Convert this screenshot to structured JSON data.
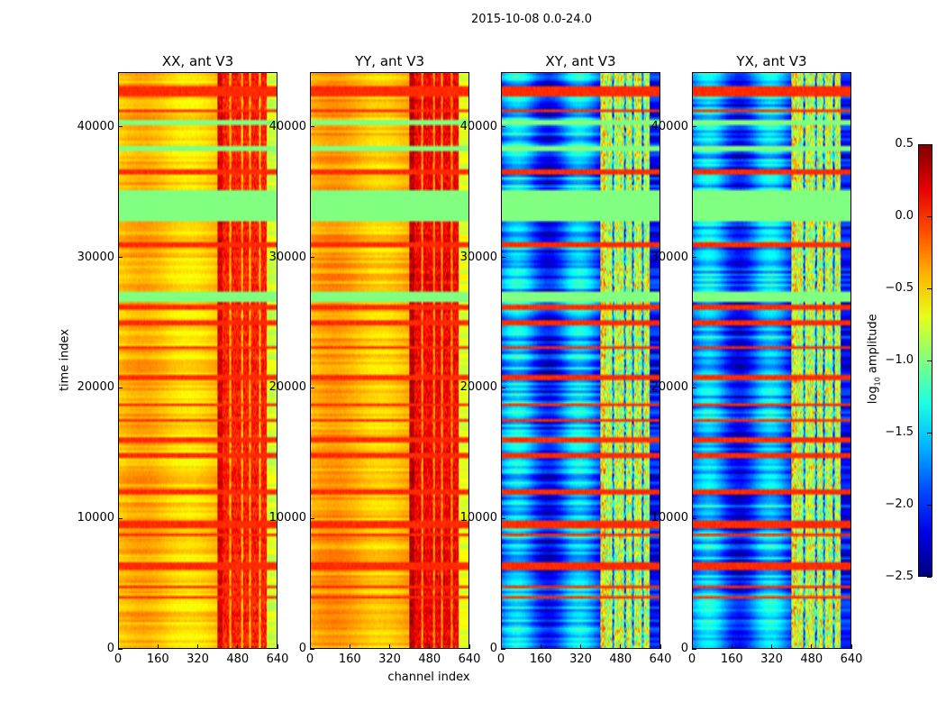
{
  "chart_data": {
    "type": "heatmap",
    "title": "2015-10-08 0.0-24.0",
    "xlabel": "channel index",
    "ylabel": "time index",
    "xlim": [
      0,
      640
    ],
    "ylim": [
      0,
      44200
    ],
    "xticks": [
      0,
      160,
      320,
      480,
      640
    ],
    "yticks": [
      0,
      10000,
      20000,
      30000,
      40000
    ],
    "colormap": "jet",
    "colorbar": {
      "label_pre": "log",
      "label_sub": "10",
      "label_post": " amplitude",
      "vmin": -2.5,
      "vmax": 0.5,
      "ticks": [
        "0.5",
        "0.0",
        "−0.5",
        "−1.0",
        "−1.5",
        "−2.0",
        "−2.5"
      ],
      "tick_values": [
        0.5,
        0.0,
        -0.5,
        -1.0,
        -1.5,
        -2.0,
        -2.5
      ]
    },
    "panels": [
      {
        "title": "XX, ant V3",
        "low_channel_level": -0.45,
        "high_channel_level": 0.05
      },
      {
        "title": "YY, ant V3",
        "low_channel_level": -0.4,
        "high_channel_level": 0.15
      },
      {
        "title": "XY, ant V3",
        "low_channel_level": -1.8,
        "high_channel_level": -0.8
      },
      {
        "title": "YX, ant V3",
        "low_channel_level": -1.8,
        "high_channel_level": -0.8
      }
    ],
    "flagged_time_ranges": [
      [
        32800,
        35200
      ],
      [
        26700,
        27300
      ],
      [
        40300,
        40500
      ],
      [
        38300,
        38600
      ]
    ],
    "flagged_level": -1.0,
    "bright_time_lines": [
      43000,
      42600,
      41300,
      36600,
      31000,
      26200,
      25000,
      23100,
      20800,
      18700,
      17500,
      16000,
      14800,
      12000,
      9600,
      9300,
      8700,
      6500,
      6200,
      4700,
      3900
    ],
    "rfi_channel_range": [
      400,
      600
    ]
  }
}
